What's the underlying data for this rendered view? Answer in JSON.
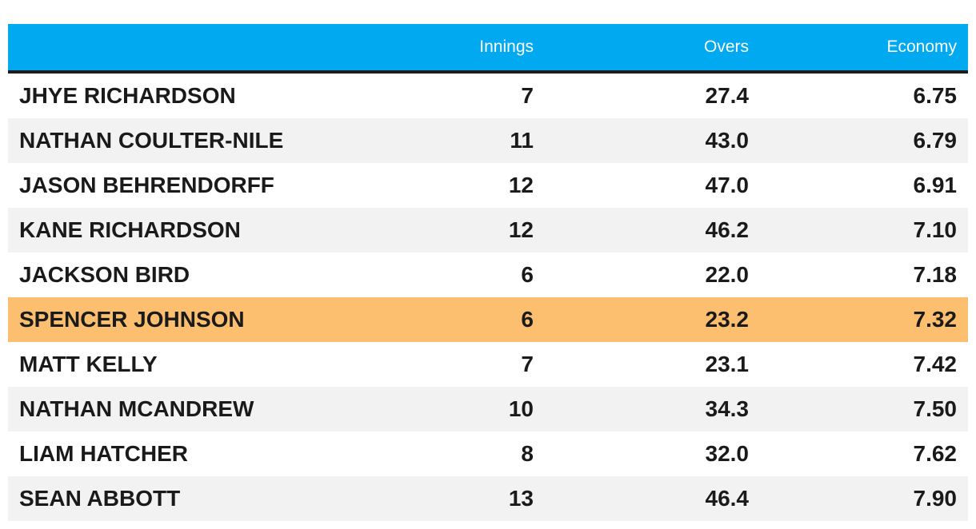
{
  "chart_data": {
    "type": "table",
    "columns": [
      "",
      "Innings",
      "Overs",
      "Economy"
    ],
    "rows": [
      {
        "name": "JHYE RICHARDSON",
        "innings": "7",
        "overs": "27.4",
        "economy": "6.75",
        "highlight": false
      },
      {
        "name": "NATHAN COULTER-NILE",
        "innings": "11",
        "overs": "43.0",
        "economy": "6.79",
        "highlight": false
      },
      {
        "name": "JASON BEHRENDORFF",
        "innings": "12",
        "overs": "47.0",
        "economy": "6.91",
        "highlight": false
      },
      {
        "name": "KANE RICHARDSON",
        "innings": "12",
        "overs": "46.2",
        "economy": "7.10",
        "highlight": false
      },
      {
        "name": "JACKSON BIRD",
        "innings": "6",
        "overs": "22.0",
        "economy": "7.18",
        "highlight": false
      },
      {
        "name": "SPENCER JOHNSON",
        "innings": "6",
        "overs": "23.2",
        "economy": "7.32",
        "highlight": true
      },
      {
        "name": "MATT KELLY",
        "innings": "7",
        "overs": "23.1",
        "economy": "7.42",
        "highlight": false
      },
      {
        "name": "NATHAN MCANDREW",
        "innings": "10",
        "overs": "34.3",
        "economy": "7.50",
        "highlight": false
      },
      {
        "name": "LIAM HATCHER",
        "innings": "8",
        "overs": "32.0",
        "economy": "7.62",
        "highlight": false
      },
      {
        "name": "SEAN ABBOTT",
        "innings": "13",
        "overs": "46.4",
        "economy": "7.90",
        "highlight": false
      }
    ],
    "colors": {
      "header_background": "#00a9f0",
      "header_text": "#ffffff",
      "header_rule": "#1c1c1c",
      "alternate_row": "#f2f2f2",
      "highlight_row": "#fcbf6f",
      "body_text": "#1a1a1a"
    }
  }
}
